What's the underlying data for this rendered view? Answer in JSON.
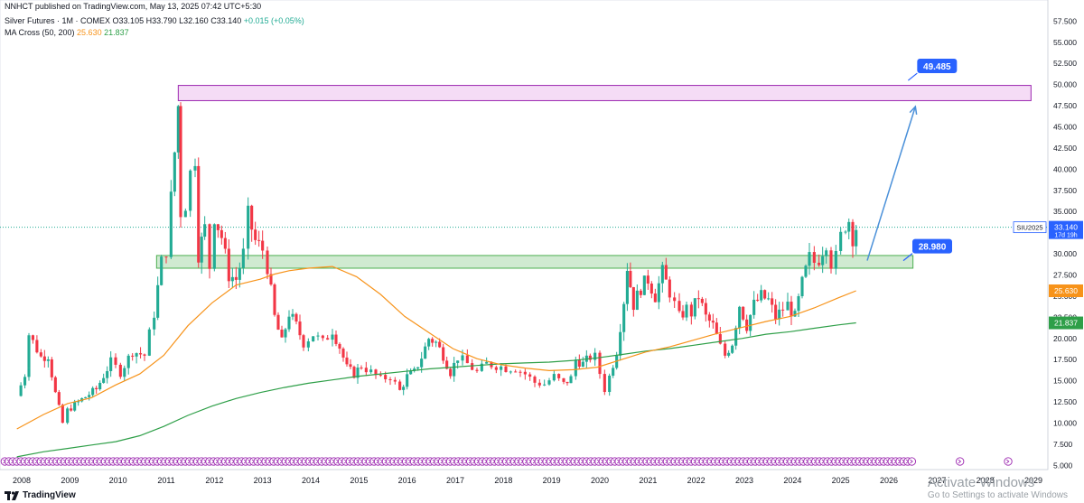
{
  "header": {
    "publish_line": "NNHCT published on TradingView.com, May 13, 2025 07:42 UTC+5:30",
    "symbol_name": "Silver Futures · 1M · COMEX",
    "ohlc": {
      "open": "O33.105",
      "high": "H33.790",
      "low": "L32.160",
      "close": "C33.140",
      "change": "+0.015 (+0.05%)"
    },
    "ma_label": "MA Cross (50, 200)",
    "ma_fast_value": "25.630",
    "ma_slow_value": "21.837"
  },
  "footer": {
    "brand": "TradingView",
    "watermark_line1": "Activate Windows",
    "watermark_line2": "Go to Settings to activate Windows"
  },
  "colors": {
    "up": "#22ab94",
    "down": "#f23645",
    "ma_fast": "#f7931a",
    "ma_slow": "#2e9f48",
    "resistance_fill": "#f3d6f5",
    "resistance_stroke": "#9c27b0",
    "support_fill": "#c8e6c9",
    "support_stroke": "#4caf50",
    "label_blue": "#2962ff",
    "arrow": "#4a90d9"
  },
  "chart_data": {
    "type": "candlestick",
    "title": "Silver Futures · 1M · COMEX",
    "x_ticks": [
      "2008",
      "2009",
      "2010",
      "2011",
      "2012",
      "2013",
      "2014",
      "2015",
      "2016",
      "2017",
      "2018",
      "2019",
      "2020",
      "2021",
      "2022",
      "2023",
      "2024",
      "2025",
      "2026",
      "2027",
      "2028",
      "2029"
    ],
    "y_ticks": [
      "5.000",
      "7.500",
      "10.000",
      "12.500",
      "15.000",
      "17.500",
      "20.000",
      "22.500",
      "25.000",
      "27.500",
      "30.000",
      "32.500",
      "35.000",
      "37.500",
      "40.000",
      "42.500",
      "45.000",
      "47.500",
      "50.000",
      "52.500",
      "55.000",
      "57.500"
    ],
    "ylim": [
      4.5,
      58.5
    ],
    "price_points": [
      [
        2007.95,
        13.2
      ],
      [
        2008.2,
        17.0
      ],
      [
        2008.2,
        20.5
      ],
      [
        2008.45,
        17.8
      ],
      [
        2008.6,
        18.0
      ],
      [
        2008.75,
        13.5
      ],
      [
        2008.9,
        10.0
      ],
      [
        2009.0,
        11.5
      ],
      [
        2009.3,
        12.8
      ],
      [
        2009.6,
        14.0
      ],
      [
        2009.9,
        17.2
      ],
      [
        2010.1,
        16.0
      ],
      [
        2010.35,
        18.5
      ],
      [
        2010.6,
        18.0
      ],
      [
        2010.8,
        23.0
      ],
      [
        2010.95,
        29.0
      ],
      [
        2011.05,
        30.5
      ],
      [
        2011.15,
        36.5
      ],
      [
        2011.3,
        47.5
      ],
      [
        2011.35,
        35.0
      ],
      [
        2011.45,
        36.0
      ],
      [
        2011.55,
        39.5
      ],
      [
        2011.65,
        41.5
      ],
      [
        2011.72,
        30.0
      ],
      [
        2011.85,
        33.0
      ],
      [
        2011.95,
        28.5
      ],
      [
        2012.05,
        34.5
      ],
      [
        2012.2,
        32.0
      ],
      [
        2012.35,
        27.5
      ],
      [
        2012.5,
        27.0
      ],
      [
        2012.65,
        30.0
      ],
      [
        2012.75,
        34.5
      ],
      [
        2012.9,
        31.5
      ],
      [
        2013.05,
        30.5
      ],
      [
        2013.15,
        28.5
      ],
      [
        2013.3,
        22.5
      ],
      [
        2013.45,
        19.5
      ],
      [
        2013.6,
        23.0
      ],
      [
        2013.75,
        21.5
      ],
      [
        2013.9,
        19.5
      ],
      [
        2014.1,
        20.5
      ],
      [
        2014.3,
        19.5
      ],
      [
        2014.5,
        21.0
      ],
      [
        2014.65,
        19.0
      ],
      [
        2014.8,
        16.5
      ],
      [
        2014.95,
        15.8
      ],
      [
        2015.1,
        16.8
      ],
      [
        2015.3,
        16.0
      ],
      [
        2015.5,
        15.2
      ],
      [
        2015.7,
        15.5
      ],
      [
        2015.9,
        13.8
      ],
      [
        2016.05,
        15.5
      ],
      [
        2016.2,
        16.0
      ],
      [
        2016.35,
        17.8
      ],
      [
        2016.5,
        20.0
      ],
      [
        2016.65,
        19.5
      ],
      [
        2016.8,
        18.0
      ],
      [
        2016.95,
        16.0
      ],
      [
        2017.1,
        17.8
      ],
      [
        2017.3,
        17.0
      ],
      [
        2017.5,
        16.0
      ],
      [
        2017.7,
        17.0
      ],
      [
        2017.9,
        16.8
      ],
      [
        2018.1,
        16.5
      ],
      [
        2018.3,
        16.5
      ],
      [
        2018.5,
        15.8
      ],
      [
        2018.7,
        14.8
      ],
      [
        2018.9,
        14.6
      ],
      [
        2019.1,
        15.5
      ],
      [
        2019.3,
        14.6
      ],
      [
        2019.45,
        15.3
      ],
      [
        2019.55,
        17.5
      ],
      [
        2019.7,
        17.0
      ],
      [
        2019.85,
        17.8
      ],
      [
        2019.95,
        17.8
      ],
      [
        2020.15,
        14.0
      ],
      [
        2020.25,
        15.5
      ],
      [
        2020.4,
        18.5
      ],
      [
        2020.55,
        24.5
      ],
      [
        2020.62,
        28.5
      ],
      [
        2020.75,
        24.0
      ],
      [
        2020.9,
        26.0
      ],
      [
        2021.05,
        27.0
      ],
      [
        2021.2,
        25.0
      ],
      [
        2021.35,
        27.8
      ],
      [
        2021.5,
        25.5
      ],
      [
        2021.7,
        22.5
      ],
      [
        2021.85,
        23.5
      ],
      [
        2021.95,
        23.0
      ],
      [
        2022.1,
        25.0
      ],
      [
        2022.25,
        22.5
      ],
      [
        2022.4,
        21.5
      ],
      [
        2022.55,
        19.0
      ],
      [
        2022.65,
        18.0
      ],
      [
        2022.8,
        19.5
      ],
      [
        2022.95,
        24.0
      ],
      [
        2023.1,
        21.5
      ],
      [
        2023.25,
        24.0
      ],
      [
        2023.4,
        25.0
      ],
      [
        2023.55,
        24.5
      ],
      [
        2023.7,
        22.5
      ],
      [
        2023.85,
        23.5
      ],
      [
        2023.95,
        24.0
      ],
      [
        2024.1,
        22.5
      ],
      [
        2024.25,
        26.5
      ],
      [
        2024.4,
        29.5
      ],
      [
        2024.5,
        29.0
      ],
      [
        2024.6,
        29.5
      ],
      [
        2024.75,
        31.5
      ],
      [
        2024.85,
        29.0
      ],
      [
        2024.95,
        29.5
      ],
      [
        2025.05,
        32.0
      ],
      [
        2025.15,
        33.5
      ],
      [
        2025.22,
        34.0
      ],
      [
        2025.3,
        32.0
      ],
      [
        2025.37,
        33.14
      ]
    ],
    "ma_fast": [
      [
        2007.95,
        9.3
      ],
      [
        2008.5,
        11.0
      ],
      [
        2009.0,
        12.3
      ],
      [
        2009.5,
        13.0
      ],
      [
        2010.0,
        14.5
      ],
      [
        2010.5,
        15.8
      ],
      [
        2011.0,
        18.0
      ],
      [
        2011.5,
        21.5
      ],
      [
        2012.0,
        24.2
      ],
      [
        2012.5,
        26.3
      ],
      [
        2013.0,
        27.0
      ],
      [
        2013.3,
        27.6
      ],
      [
        2013.6,
        28.0
      ],
      [
        2014.0,
        28.3
      ],
      [
        2014.5,
        28.5
      ],
      [
        2015.0,
        27.3
      ],
      [
        2015.5,
        25.2
      ],
      [
        2016.0,
        22.6
      ],
      [
        2016.5,
        20.7
      ],
      [
        2017.0,
        18.8
      ],
      [
        2017.5,
        17.6
      ],
      [
        2018.0,
        16.9
      ],
      [
        2018.5,
        16.5
      ],
      [
        2019.0,
        16.2
      ],
      [
        2019.5,
        16.3
      ],
      [
        2020.0,
        16.6
      ],
      [
        2020.5,
        17.5
      ],
      [
        2021.0,
        18.4
      ],
      [
        2021.5,
        19.0
      ],
      [
        2022.0,
        19.8
      ],
      [
        2022.5,
        20.6
      ],
      [
        2023.0,
        21.3
      ],
      [
        2023.5,
        22.0
      ],
      [
        2024.0,
        22.6
      ],
      [
        2024.5,
        23.6
      ],
      [
        2025.0,
        24.8
      ],
      [
        2025.37,
        25.63
      ]
    ],
    "ma_slow": [
      [
        2007.95,
        6.0
      ],
      [
        2008.5,
        6.6
      ],
      [
        2009.0,
        7.0
      ],
      [
        2009.5,
        7.4
      ],
      [
        2010.0,
        7.8
      ],
      [
        2010.5,
        8.5
      ],
      [
        2011.0,
        9.6
      ],
      [
        2011.5,
        10.9
      ],
      [
        2012.0,
        12.0
      ],
      [
        2012.5,
        12.9
      ],
      [
        2013.0,
        13.6
      ],
      [
        2013.5,
        14.2
      ],
      [
        2014.0,
        14.7
      ],
      [
        2014.5,
        15.1
      ],
      [
        2015.0,
        15.5
      ],
      [
        2015.5,
        15.8
      ],
      [
        2016.0,
        16.1
      ],
      [
        2016.5,
        16.4
      ],
      [
        2017.0,
        16.6
      ],
      [
        2017.5,
        16.8
      ],
      [
        2018.0,
        17.0
      ],
      [
        2018.5,
        17.1
      ],
      [
        2019.0,
        17.2
      ],
      [
        2019.5,
        17.4
      ],
      [
        2020.0,
        17.7
      ],
      [
        2020.5,
        18.1
      ],
      [
        2021.0,
        18.5
      ],
      [
        2021.5,
        18.8
      ],
      [
        2022.0,
        19.2
      ],
      [
        2022.5,
        19.6
      ],
      [
        2023.0,
        20.0
      ],
      [
        2023.5,
        20.5
      ],
      [
        2024.0,
        20.8
      ],
      [
        2024.5,
        21.2
      ],
      [
        2025.0,
        21.6
      ],
      [
        2025.37,
        21.837
      ]
    ],
    "zones": [
      {
        "name": "resistance",
        "from_x": 2011.3,
        "to_x": 2029.0,
        "y_low": 48.1,
        "y_high": 49.9
      },
      {
        "name": "support",
        "from_x": 2010.85,
        "to_x": 2026.55,
        "y_low": 28.3,
        "y_high": 29.8
      }
    ],
    "projection_arrow": {
      "from": [
        2025.6,
        29.2
      ],
      "to": [
        2026.6,
        47.4
      ]
    },
    "callouts": [
      {
        "label": "49.485",
        "x": 2027.05,
        "y": 52.2
      },
      {
        "label": "28.980",
        "x": 2026.95,
        "y": 30.9
      }
    ],
    "price_tags": [
      {
        "label": "SIU2025",
        "value": "33.140",
        "countdown": "17d 19h",
        "price": 33.14,
        "color": "#2962ff"
      },
      {
        "label": "",
        "value": "25.630",
        "price": 25.63,
        "color": "#f7931a"
      },
      {
        "label": "",
        "value": "21.837",
        "price": 21.837,
        "color": "#2e9f48"
      }
    ],
    "current_price": 33.14
  }
}
